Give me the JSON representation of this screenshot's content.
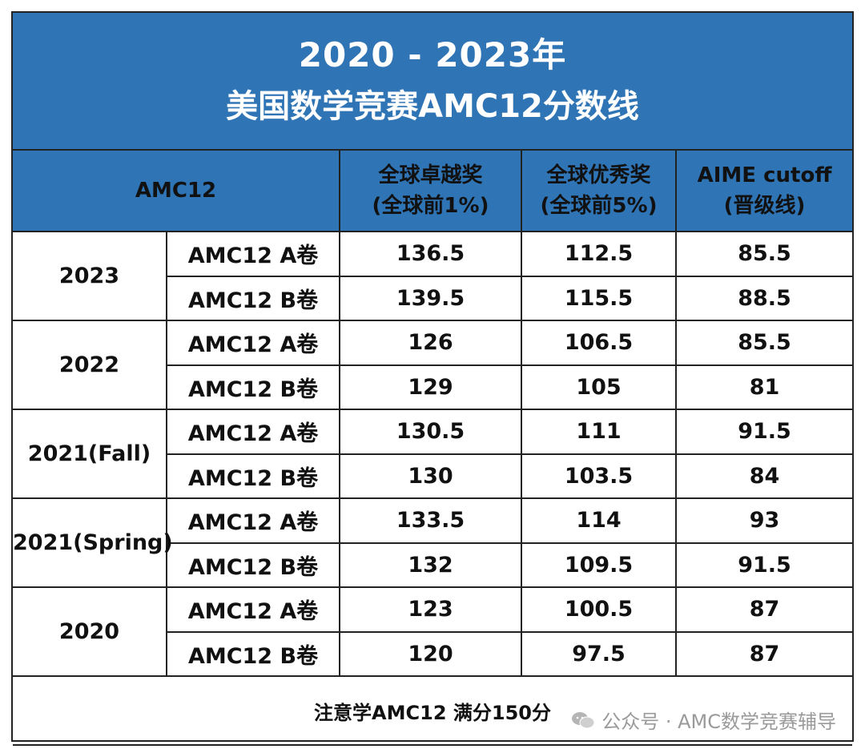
{
  "title": {
    "line1": "2020 - 2023年",
    "line2": "美国数学竞赛AMC12分数线"
  },
  "headers": {
    "contest": "AMC12",
    "col1_line1": "全球卓越奖",
    "col1_line2": "(全球前1%)",
    "col2_line1": "全球优秀奖",
    "col2_line2": "(全球前5%)",
    "col3_line1": "AIME cutoff",
    "col3_line2": "(晋级线)"
  },
  "rows": [
    {
      "year": "2023",
      "paper": "AMC12 A卷",
      "distinction": "136.5",
      "honor": "112.5",
      "aime": "85.5"
    },
    {
      "year": "2023",
      "paper": "AMC12 B卷",
      "distinction": "139.5",
      "honor": "115.5",
      "aime": "88.5"
    },
    {
      "year": "2022",
      "paper": "AMC12 A卷",
      "distinction": "126",
      "honor": "106.5",
      "aime": "85.5"
    },
    {
      "year": "2022",
      "paper": "AMC12 B卷",
      "distinction": "129",
      "honor": "105",
      "aime": "81"
    },
    {
      "year": "2021(Fall)",
      "paper": "AMC12 A卷",
      "distinction": "130.5",
      "honor": "111",
      "aime": "91.5"
    },
    {
      "year": "2021(Fall)",
      "paper": "AMC12 B卷",
      "distinction": "130",
      "honor": "103.5",
      "aime": "84"
    },
    {
      "year": "2021(Spring)",
      "paper": "AMC12 A卷",
      "distinction": "133.5",
      "honor": "114",
      "aime": "93"
    },
    {
      "year": "2021(Spring)",
      "paper": "AMC12 B卷",
      "distinction": "132",
      "honor": "109.5",
      "aime": "91.5"
    },
    {
      "year": "2020",
      "paper": "AMC12 A卷",
      "distinction": "123",
      "honor": "100.5",
      "aime": "87"
    },
    {
      "year": "2020",
      "paper": "AMC12 B卷",
      "distinction": "120",
      "honor": "97.5",
      "aime": "87"
    }
  ],
  "note": "注意学AMC12 满分150分",
  "watermark": {
    "icon": "wechat-icon",
    "text": "公众号 · AMC数学竞赛辅导"
  },
  "colors": {
    "header_blue": "#2f74b5",
    "note_red": "#c00000",
    "watermark_gray": "#9a9a9a"
  }
}
